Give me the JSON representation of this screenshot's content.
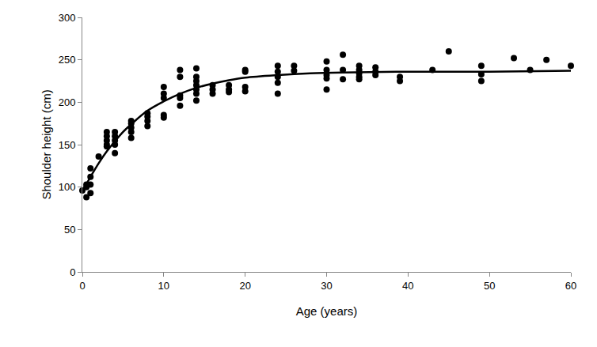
{
  "chart_data": {
    "type": "scatter",
    "x_label": "Age (years)",
    "y_label": "Shoulder height (cm)",
    "xlim": [
      0,
      60
    ],
    "xticks": [
      0,
      10,
      20,
      30,
      40,
      50,
      60
    ],
    "ylim": [
      0,
      300
    ],
    "yticks": [
      0,
      50,
      100,
      150,
      200,
      250,
      300
    ],
    "grid": false,
    "series": [
      {
        "type": "scatter",
        "color": "#000000",
        "marker": "circle",
        "x": [
          0,
          0.5,
          0.5,
          0.5,
          1,
          1,
          1,
          1,
          2,
          3,
          3,
          3,
          3,
          3,
          4,
          4,
          4,
          4,
          4,
          6,
          6,
          6,
          6,
          6,
          8,
          8,
          8,
          8,
          10,
          10,
          10,
          10,
          10,
          12,
          12,
          12,
          12,
          12,
          14,
          14,
          14,
          14,
          14,
          14,
          14,
          16,
          16,
          16,
          18,
          18,
          18,
          20,
          20,
          20,
          20,
          24,
          24,
          24,
          24,
          24,
          26,
          26,
          30,
          30,
          30,
          30,
          30,
          32,
          32,
          32,
          34,
          34,
          34,
          34,
          34,
          36,
          36,
          36,
          39,
          39,
          43,
          45,
          49,
          49,
          49,
          53,
          55,
          57,
          60
        ],
        "values": [
          96,
          88,
          103,
          100,
          93,
          103,
          112,
          122,
          136,
          165,
          160,
          155,
          150,
          148,
          140,
          150,
          155,
          160,
          165,
          158,
          165,
          170,
          175,
          178,
          172,
          178,
          183,
          187,
          182,
          185,
          205,
          210,
          218,
          196,
          205,
          208,
          230,
          238,
          202,
          210,
          215,
          220,
          225,
          230,
          240,
          210,
          215,
          220,
          212,
          215,
          220,
          213,
          218,
          236,
          238,
          210,
          223,
          230,
          236,
          243,
          237,
          243,
          215,
          228,
          232,
          238,
          248,
          227,
          238,
          256,
          227,
          230,
          234,
          238,
          243,
          232,
          236,
          241,
          225,
          230,
          238,
          260,
          225,
          233,
          243,
          252,
          238,
          250,
          243
        ]
      },
      {
        "type": "line",
        "color": "#000000",
        "line_style": "solid",
        "x": [
          0,
          1,
          2,
          3,
          4,
          5,
          6,
          8,
          10,
          12,
          14,
          16,
          18,
          20,
          24,
          28,
          32,
          40,
          50,
          60
        ],
        "values": [
          95,
          112,
          128,
          142,
          154,
          165,
          174,
          190,
          201,
          210,
          217,
          222,
          226,
          229,
          232,
          234,
          235,
          236,
          236,
          237
        ]
      }
    ]
  }
}
